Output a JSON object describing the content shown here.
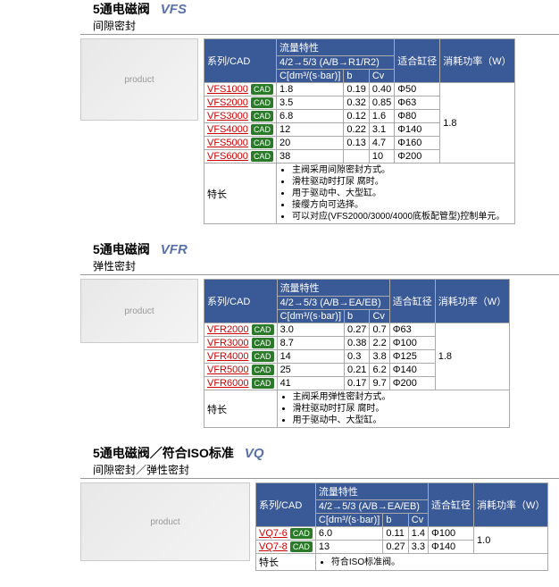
{
  "sections": [
    {
      "title": "5通电磁阀",
      "model": "VFS",
      "subtitle": "间隙密封",
      "imgClass": "vfs-img",
      "flow_subheader": "4/2→5/3 (A/B→R1/R2)",
      "col_series": "系列/CAD",
      "col_flow": "流量特性",
      "col_c": "C[dm³/(s·bar)]",
      "col_b": "b",
      "col_cv": "Cv",
      "col_bore": "适合缸径",
      "col_power": "消耗功率（W）",
      "rows": [
        {
          "series": "VFS1000",
          "c": "1.8",
          "b": "0.19",
          "cv": "0.40",
          "bore": "Φ50"
        },
        {
          "series": "VFS2000",
          "c": "3.5",
          "b": "0.32",
          "cv": "0.85",
          "bore": "Φ63"
        },
        {
          "series": "VFS3000",
          "c": "6.8",
          "b": "0.12",
          "cv": "1.6",
          "bore": "Φ80"
        },
        {
          "series": "VFS4000",
          "c": "12",
          "b": "0.22",
          "cv": "3.1",
          "bore": "Φ140"
        },
        {
          "series": "VFS5000",
          "c": "20",
          "b": "0.13",
          "cv": "4.7",
          "bore": "Φ160"
        },
        {
          "series": "VFS6000",
          "c": "38",
          "b": "",
          "cv": "10",
          "bore": "Φ200"
        }
      ],
      "power": "1.8",
      "feat_label": "特长",
      "features": [
        "主阀采用间隙密封方式。",
        "滑柱驱动时打尿 腐时。",
        "用于驱动中、大型缸。",
        "接缨方向可选择。",
        "可以对应(VFS2000/3000/4000底板配管型)控制单元。"
      ]
    },
    {
      "title": "5通电磁阀",
      "model": "VFR",
      "subtitle": "弹性密封",
      "imgClass": "vfr-img",
      "flow_subheader": "4/2→5/3 (A/B→EA/EB)",
      "col_series": "系列/CAD",
      "col_flow": "流量特性",
      "col_c": "C[dm³/(s·bar)]",
      "col_b": "b",
      "col_cv": "Cv",
      "col_bore": "适合缸径",
      "col_power": "消耗功率（W）",
      "rows": [
        {
          "series": "VFR2000",
          "c": "3.0",
          "b": "0.27",
          "cv": "0.7",
          "bore": "Φ63"
        },
        {
          "series": "VFR3000",
          "c": "8.7",
          "b": "0.38",
          "cv": "2.2",
          "bore": "Φ100"
        },
        {
          "series": "VFR4000",
          "c": "14",
          "b": "0.3",
          "cv": "3.8",
          "bore": "Φ125"
        },
        {
          "series": "VFR5000",
          "c": "25",
          "b": "0.21",
          "cv": "6.2",
          "bore": "Φ140"
        },
        {
          "series": "VFR6000",
          "c": "41",
          "b": "0.17",
          "cv": "9.7",
          "bore": "Φ200"
        }
      ],
      "power": "1.8",
      "feat_label": "特长",
      "features": [
        "主阀采用弹性密封方式。",
        "滑柱驱动时打尿 腐时。",
        "用于驱动中、大型缸。"
      ]
    },
    {
      "title": "5通电磁阀／符合ISO标准",
      "model": "VQ",
      "subtitle": "间隙密封／弹性密封",
      "imgClass": "vq-img",
      "flow_subheader": "4/2→5/3 (A/B→EA/EB)",
      "col_series": "系列/CAD",
      "col_flow": "流量特性",
      "col_c": "C[dm³/(s·bar)]",
      "col_b": "b",
      "col_cv": "Cv",
      "col_bore": "适合缸径",
      "col_power": "消耗功率（W）",
      "rows": [
        {
          "series": "VQ7-6",
          "c": "6.0",
          "b": "0.11",
          "cv": "1.4",
          "bore": "Φ100"
        },
        {
          "series": "VQ7-8",
          "c": "13",
          "b": "0.27",
          "cv": "3.3",
          "bore": "Φ140"
        }
      ],
      "power": "1.0",
      "feat_label": "特长",
      "features": [
        "符合ISO标准阀。"
      ]
    }
  ],
  "cad_label": "CAD",
  "img_alt": "product"
}
